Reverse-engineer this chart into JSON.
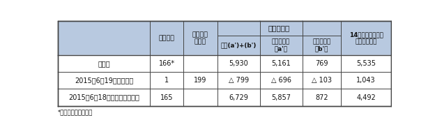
{
  "header_bg": "#b8c9e0",
  "data_bg": "#ffffff",
  "border_color": "#444444",
  "text_color": "#111111",
  "footnote": "*中国での症例を含む",
  "col_widths": [
    2.6,
    0.95,
    0.95,
    1.2,
    1.2,
    1.1,
    1.4
  ],
  "rows": [
    [
      "累計数",
      "166*",
      "",
      "5,930",
      "5,161",
      "769",
      "5,535"
    ],
    [
      "2015年6月19日の報告数",
      "1",
      "199",
      "△ 799",
      "△ 696",
      "△ 103",
      "1,043"
    ],
    [
      "2015年6月18日までの報告総数",
      "165",
      "",
      "6,729",
      "5,857",
      "872",
      "4,492"
    ]
  ],
  "font_size_header1": 7.5,
  "font_size_header2": 6.8,
  "font_size_data": 7.0,
  "font_size_footnote": 6.2
}
